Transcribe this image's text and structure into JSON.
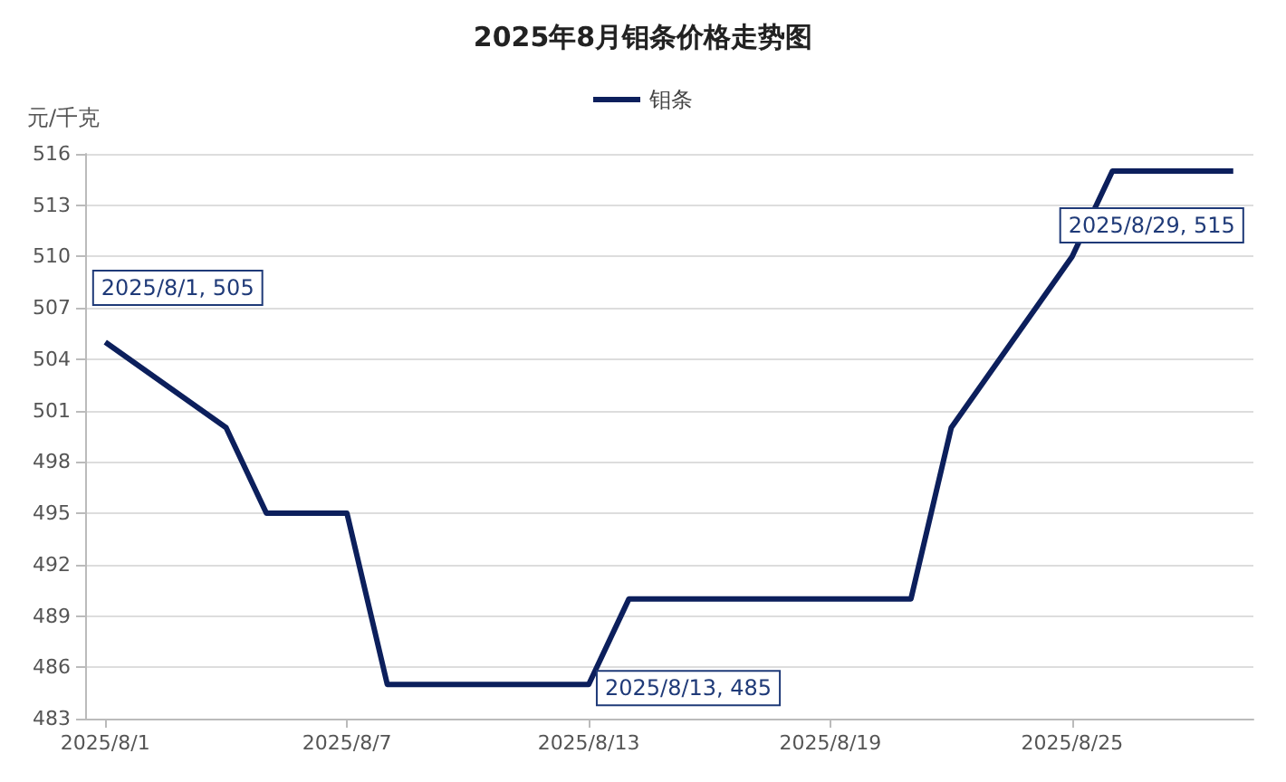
{
  "chart_data": {
    "type": "line",
    "title": "2025年8月钼条价格走势图",
    "ylabel": "元/千克",
    "x": [
      "2025-08-01",
      "2025-08-04",
      "2025-08-05",
      "2025-08-06",
      "2025-08-07",
      "2025-08-08",
      "2025-08-11",
      "2025-08-12",
      "2025-08-13",
      "2025-08-14",
      "2025-08-15",
      "2025-08-18",
      "2025-08-19",
      "2025-08-20",
      "2025-08-21",
      "2025-08-22",
      "2025-08-25",
      "2025-08-26",
      "2025-08-27",
      "2025-08-28",
      "2025-08-29"
    ],
    "series": [
      {
        "name": "钼条",
        "color": "#0c1f5c",
        "values": [
          505,
          500,
          495,
          495,
          495,
          485,
          485,
          485,
          485,
          490,
          490,
          490,
          490,
          490,
          490,
          500,
          510,
          515,
          515,
          515,
          515
        ]
      }
    ],
    "xlim": [
      "2025-07-31T12:00",
      "2025-08-29T12:00"
    ],
    "xticks": [
      {
        "value": "2025-08-01",
        "label": "2025/8/1"
      },
      {
        "value": "2025-08-07",
        "label": "2025/8/7"
      },
      {
        "value": "2025-08-13",
        "label": "2025/8/13"
      },
      {
        "value": "2025-08-19",
        "label": "2025/8/19"
      },
      {
        "value": "2025-08-25",
        "label": "2025/8/25"
      }
    ],
    "ylim": [
      483,
      516
    ],
    "yticks": [
      483,
      486,
      489,
      492,
      495,
      498,
      501,
      504,
      507,
      510,
      513,
      516
    ],
    "annotations": [
      {
        "text": "2025/8/1, 505",
        "x": "2025-08-01",
        "y": 505
      },
      {
        "text": "2025/8/13, 485",
        "x": "2025-08-13",
        "y": 485
      },
      {
        "text": "2025/8/29, 515",
        "x": "2025-08-29",
        "y": 515
      }
    ],
    "grid": "y",
    "legend": "top",
    "marker": "none",
    "line_style": "solid"
  }
}
